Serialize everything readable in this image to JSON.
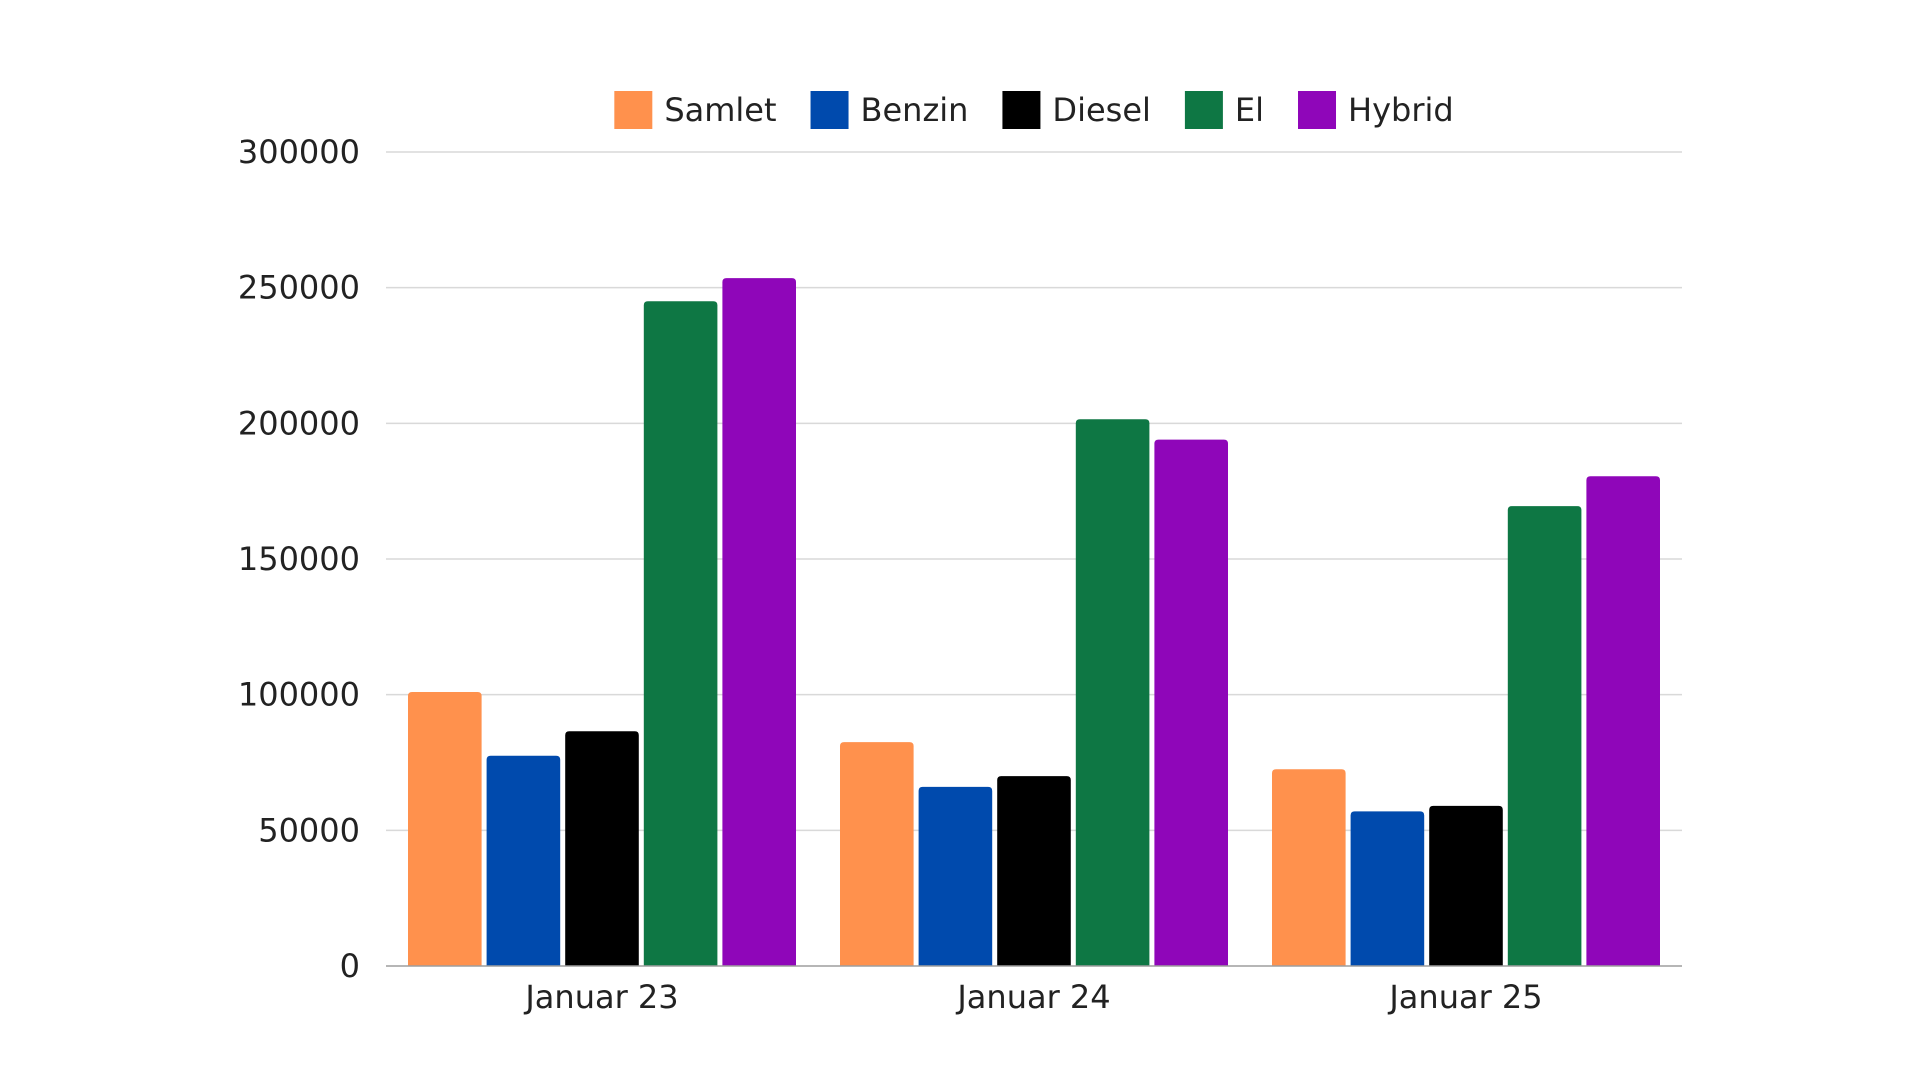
{
  "chart_data": {
    "type": "bar",
    "title": "",
    "xlabel": "",
    "ylabel": "",
    "categories": [
      "Januar 23",
      "Januar 24",
      "Januar 25"
    ],
    "series": [
      {
        "name": "Samlet",
        "color": "#ff914d",
        "values": [
          101000,
          82500,
          72500
        ]
      },
      {
        "name": "Benzin",
        "color": "#004aad",
        "values": [
          77500,
          66000,
          57000
        ]
      },
      {
        "name": "Diesel",
        "color": "#000000",
        "values": [
          86500,
          70000,
          59000
        ]
      },
      {
        "name": "El",
        "color": "#0e7744",
        "values": [
          245000,
          201500,
          169500
        ]
      },
      {
        "name": "Hybrid",
        "color": "#8f06b9",
        "values": [
          253500,
          194000,
          180500
        ]
      }
    ],
    "ylim": [
      0,
      300000
    ],
    "yticks": [
      0,
      50000,
      100000,
      150000,
      200000,
      250000,
      300000
    ],
    "grid": true,
    "legend_position": "top"
  }
}
